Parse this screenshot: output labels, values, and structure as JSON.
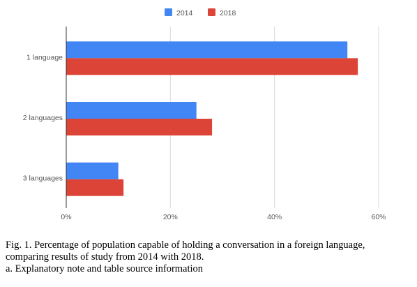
{
  "chart_data": {
    "type": "bar",
    "orientation": "horizontal",
    "categories": [
      "1 language",
      "2 languages",
      "3 languages"
    ],
    "series": [
      {
        "name": "2014",
        "color": "#4285f4",
        "values": [
          54,
          25,
          10
        ]
      },
      {
        "name": "2018",
        "color": "#db4437",
        "values": [
          56,
          28,
          11
        ]
      }
    ],
    "xlim": [
      0,
      60
    ],
    "x_ticks": [
      0,
      20,
      40,
      60
    ],
    "x_tick_labels": [
      "0%",
      "20%",
      "40%",
      "60%"
    ],
    "title": "",
    "xlabel": "",
    "ylabel": "",
    "grid": true,
    "legend_position": "top"
  },
  "caption": {
    "line1": "Fig. 1. Percentage of population capable of holding a conversation in a foreign language,",
    "line2": "comparing results of study from 2014 with 2018.",
    "note": "a. Explanatory note and table source information"
  }
}
